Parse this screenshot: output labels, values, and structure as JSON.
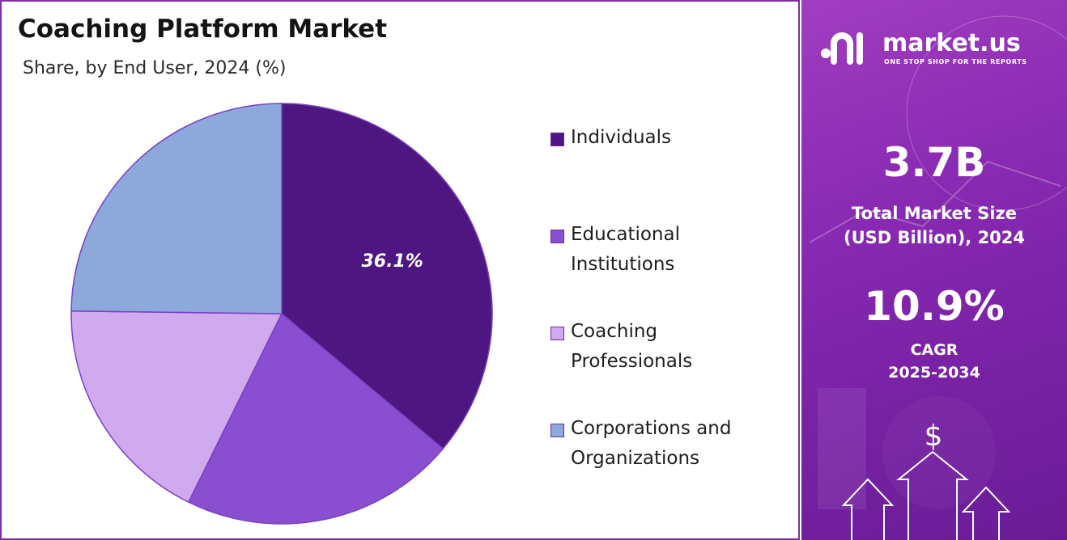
{
  "title": "Coaching Platform Market",
  "subtitle": "Share, by End User, 2024 (%)",
  "chart_data": {
    "type": "pie",
    "categories": [
      "Individuals",
      "Educational Institutions",
      "Coaching Professionals",
      "Corporations and Organizations"
    ],
    "values": [
      36.1,
      21.2,
      17.9,
      24.8
    ],
    "data_labels": [
      "36.1%",
      "",
      "",
      ""
    ],
    "colors": [
      "#4e1680",
      "#8a4fd0",
      "#d1a9ee",
      "#8da9dc"
    ],
    "legend_position": "right"
  },
  "legend": [
    {
      "label": "Individuals",
      "color": "#4e1680"
    },
    {
      "label": "Educational\nInstitutions",
      "color": "#8a4fd0"
    },
    {
      "label": "Coaching\nProfessionals",
      "color": "#d1a9ee"
    },
    {
      "label": "Corporations and\nOrganizations",
      "color": "#8da9dc"
    }
  ],
  "brand": {
    "name": "market.us",
    "tagline": "ONE STOP SHOP FOR THE REPORTS"
  },
  "stats": {
    "market_size_value": "3.7B",
    "market_size_label_line1": "Total Market Size",
    "market_size_label_line2": "(USD Billion), 2024",
    "cagr_value": "10.9%",
    "cagr_label_line1": "CAGR",
    "cagr_label_line2": "2025-2034"
  },
  "icons": [
    "dollar-icon",
    "arrow-up-icon"
  ]
}
